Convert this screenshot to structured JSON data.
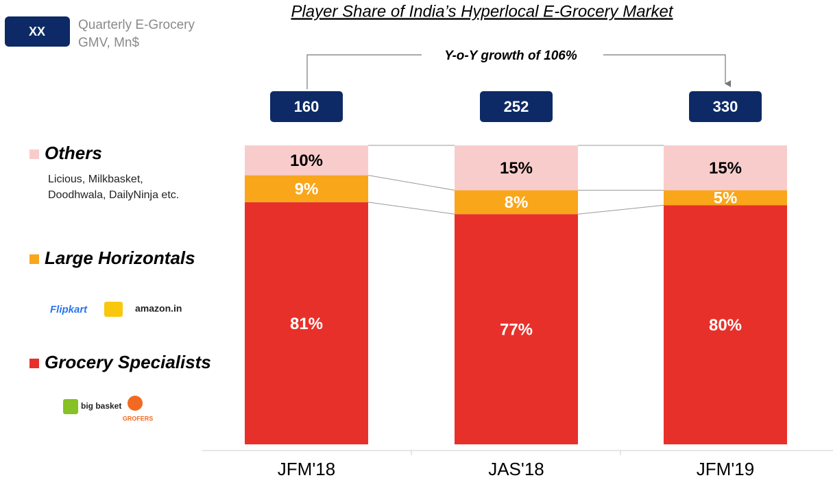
{
  "badge": "XX",
  "subtitle": [
    "Quarterly E-Grocery",
    "GMV, Mn$"
  ],
  "chart_data": {
    "type": "stacked_bar_100",
    "title": "Player Share of India’s Hyperlocal E-Grocery Market",
    "annotation": "Y-o-Y growth of 106%",
    "categories": [
      "JFM'18",
      "JAS'18",
      "JFM'19"
    ],
    "totals": [
      160,
      252,
      330
    ],
    "ylim": [
      0,
      100
    ],
    "series": [
      {
        "name": "Grocery Specialists",
        "color": "#e8302a",
        "values": [
          81,
          77,
          80
        ],
        "value_labels": [
          "81%",
          "77%",
          "80%"
        ],
        "examples": [
          "big basket",
          "GROFERS"
        ]
      },
      {
        "name": "Large Horizontals",
        "color": "#f9a61a",
        "values": [
          9,
          8,
          5
        ],
        "value_labels": [
          "9%",
          "8%",
          "5%"
        ],
        "examples": [
          "Flipkart",
          "amazon.in"
        ]
      },
      {
        "name": "Others",
        "color": "#f9cccc",
        "values": [
          10,
          15,
          15
        ],
        "value_labels": [
          "10%",
          "15%",
          "15%"
        ],
        "examples": [
          "Licious, Milkbasket,",
          "Doodhwala, DailyNinja etc."
        ]
      }
    ]
  }
}
